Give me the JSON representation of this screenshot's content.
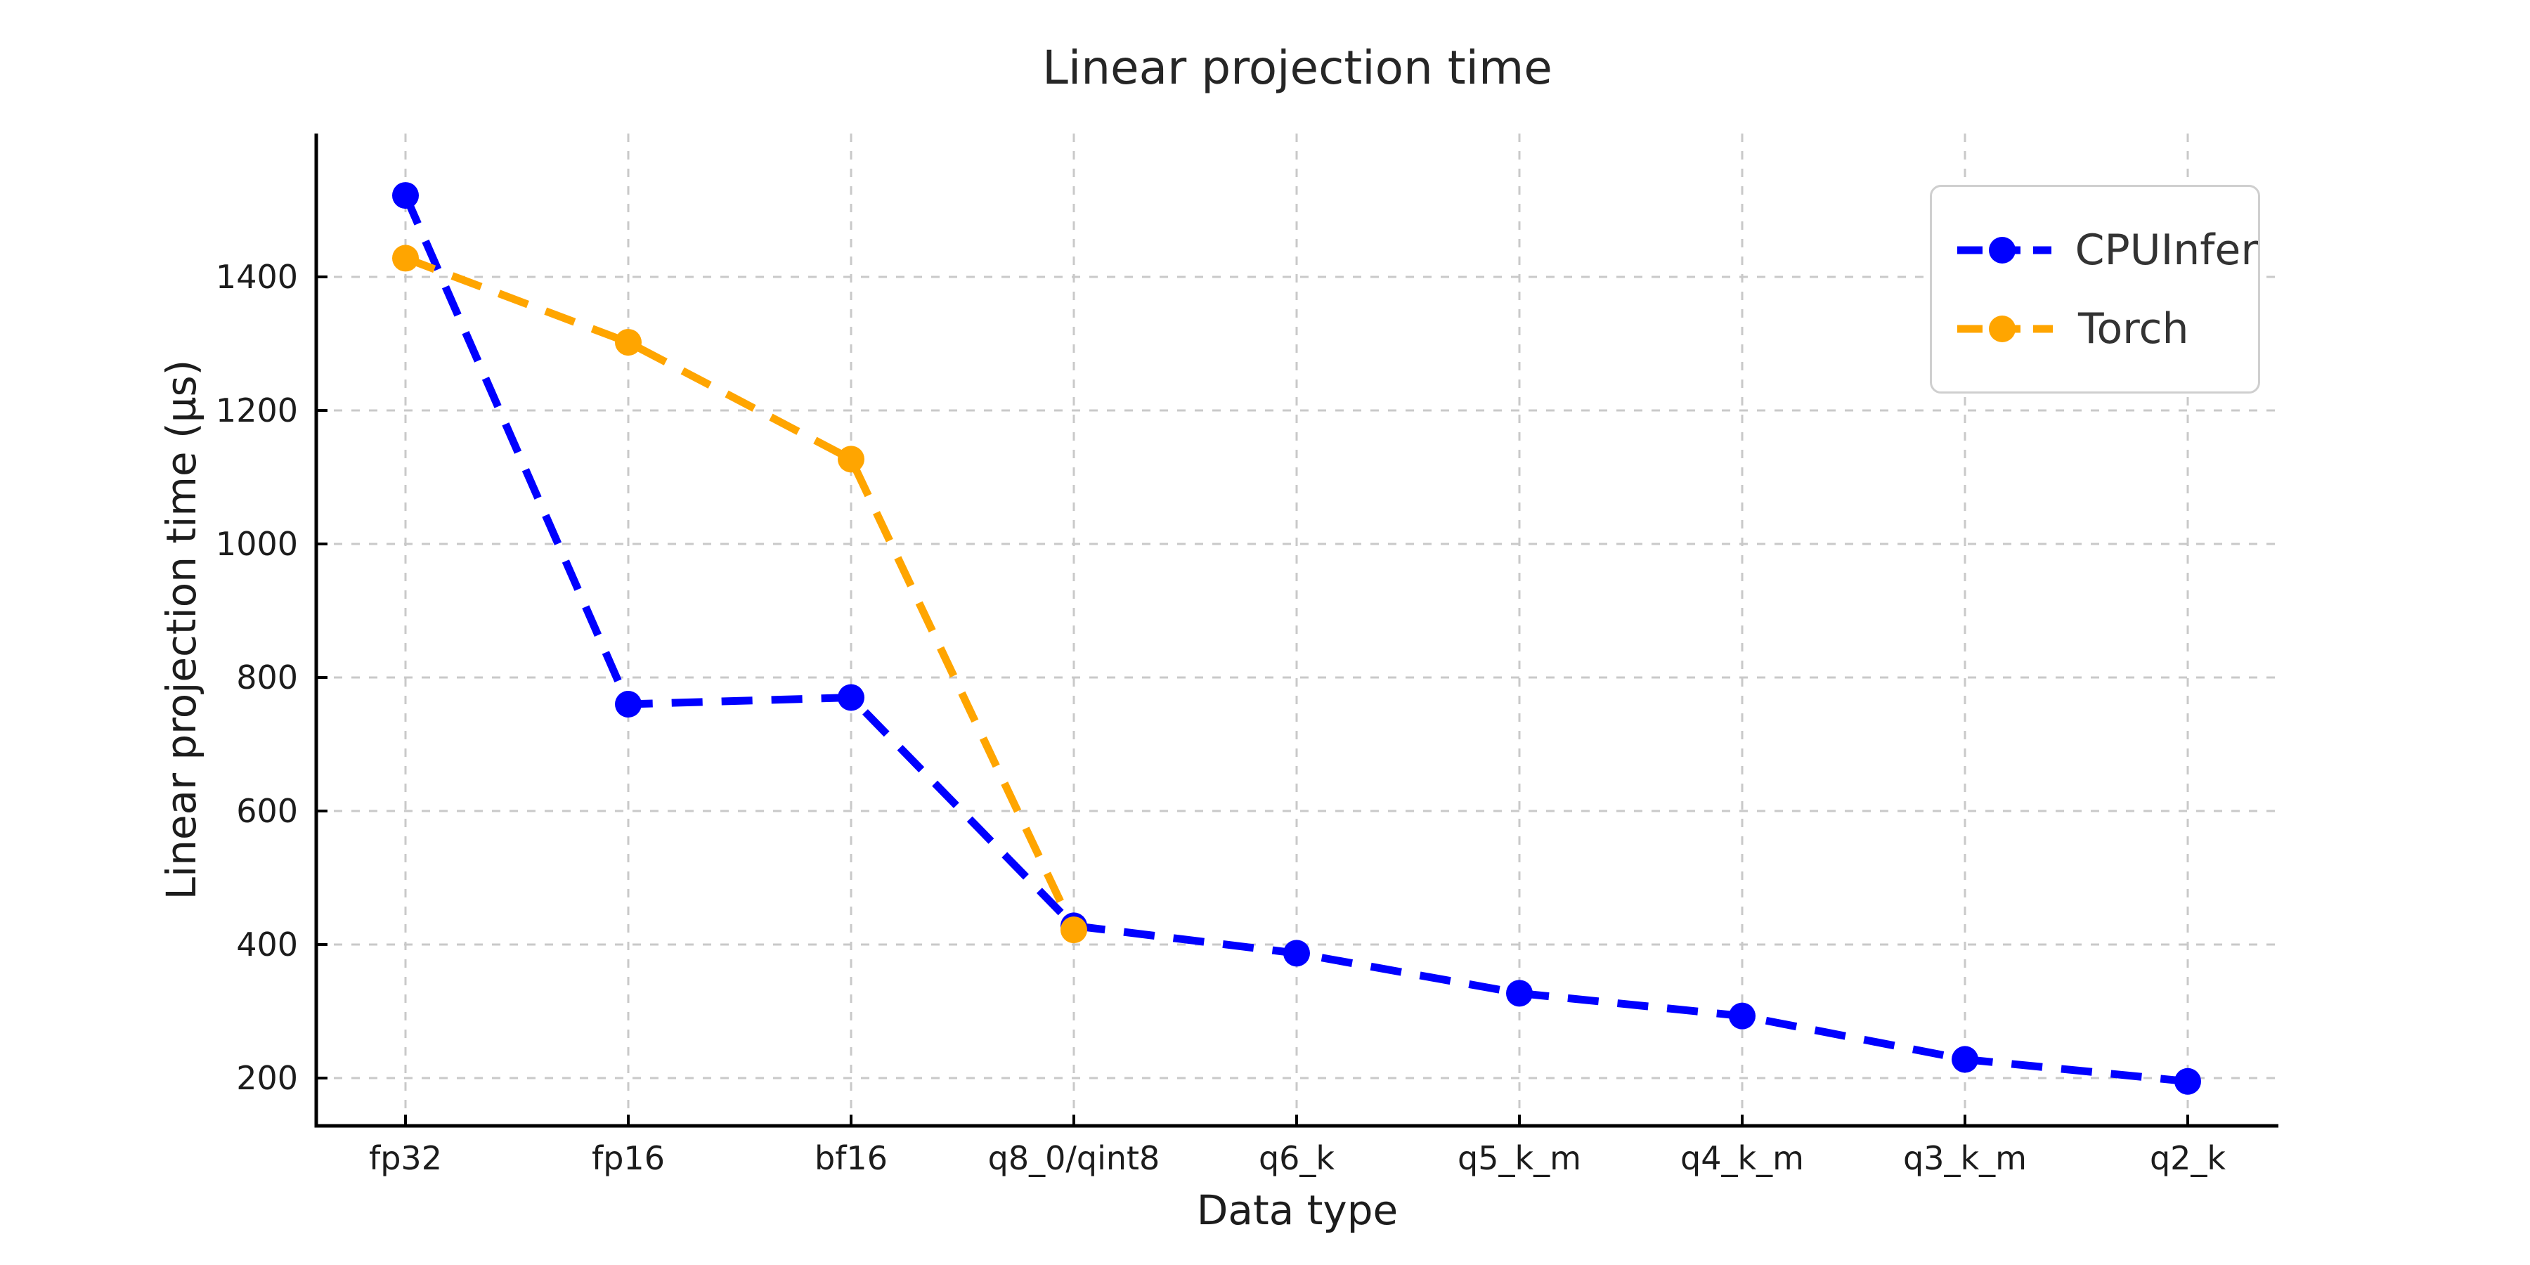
{
  "page": {
    "background": "#ffffff"
  },
  "chart_data": {
    "type": "line",
    "title": "Linear projection time",
    "xlabel": "Data type",
    "ylabel": "Linear projection time (µs)",
    "categories": [
      "fp32",
      "fp16",
      "bf16",
      "q8_0/qint8",
      "q6_k",
      "q5_k_m",
      "q4_k_m",
      "q3_k_m",
      "q2_k"
    ],
    "yticks": [
      200,
      400,
      600,
      800,
      1000,
      1200,
      1400
    ],
    "ylim": [
      129,
      1612
    ],
    "grid": true,
    "legend_position": "upper right",
    "series": [
      {
        "name": "CPUInfer",
        "color": "#0000ff",
        "linestyle": "dashed",
        "marker": "circle",
        "values": [
          1522,
          760,
          770,
          428,
          387,
          327,
          293,
          228,
          195
        ]
      },
      {
        "name": "Torch",
        "color": "#ffa500",
        "linestyle": "dashed",
        "marker": "circle",
        "values": [
          1428,
          1302,
          1127,
          422
        ]
      }
    ]
  }
}
